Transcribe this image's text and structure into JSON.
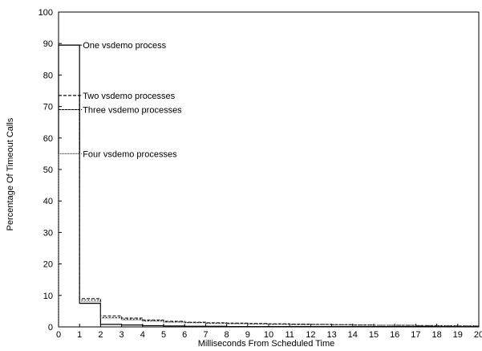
{
  "chart_data": {
    "type": "line",
    "step": "post",
    "xlabel": "Milliseconds From Scheduled Time",
    "ylabel": "Percentage Of Timeout Calls",
    "xlim": [
      0,
      20
    ],
    "ylim": [
      0,
      100
    ],
    "xticks": [
      0,
      1,
      2,
      3,
      4,
      5,
      6,
      7,
      8,
      9,
      10,
      11,
      12,
      13,
      14,
      15,
      16,
      17,
      18,
      19,
      20
    ],
    "yticks": [
      0,
      10,
      20,
      30,
      40,
      50,
      60,
      70,
      80,
      90,
      100
    ],
    "grid": false,
    "legend": "none",
    "x": [
      0,
      1,
      2,
      3,
      4,
      5,
      6,
      7,
      8,
      9,
      10,
      11,
      12,
      13,
      14,
      15,
      16,
      17,
      18,
      19,
      20
    ],
    "series": [
      {
        "name": "One vsdemo process",
        "line_style": "solid",
        "color": "#000000",
        "values": [
          89.5,
          7.5,
          0.8,
          0.6,
          0.4,
          0.3,
          0.2,
          0.2,
          0.1,
          0.1,
          0.1,
          0.1,
          0.1,
          0.1,
          0.1,
          0.1,
          0.1,
          0.1,
          0.1,
          0.1,
          0.1
        ],
        "annotation_y": 89.5
      },
      {
        "name": "Two vsdemo processes",
        "line_style": "dashed",
        "color": "#000000",
        "values": [
          73.5,
          9.0,
          3.5,
          2.8,
          2.2,
          1.8,
          1.5,
          1.3,
          1.2,
          1.1,
          1.0,
          0.9,
          0.8,
          0.7,
          0.6,
          0.5,
          0.5,
          0.4,
          0.3,
          0.3,
          0.3
        ],
        "annotation_y": 73.5
      },
      {
        "name": "Three vsdemo processes",
        "line_style": "dotted",
        "color": "#000000",
        "values": [
          69.0,
          8.5,
          3.0,
          2.5,
          2.0,
          1.6,
          1.4,
          1.2,
          1.1,
          1.0,
          0.9,
          0.8,
          0.8,
          0.7,
          0.6,
          0.5,
          0.5,
          0.4,
          0.4,
          0.3,
          0.3
        ],
        "annotation_y": 69.0
      },
      {
        "name": "Four vsdemo processes",
        "line_style": "fine-dotted",
        "color": "#555555",
        "values": [
          55.0,
          8.0,
          2.8,
          2.2,
          1.8,
          1.5,
          1.3,
          1.1,
          1.0,
          0.9,
          0.8,
          0.7,
          0.7,
          0.6,
          0.5,
          0.5,
          0.4,
          0.4,
          0.3,
          0.3,
          0.3
        ],
        "annotation_y": 55.0
      }
    ]
  }
}
